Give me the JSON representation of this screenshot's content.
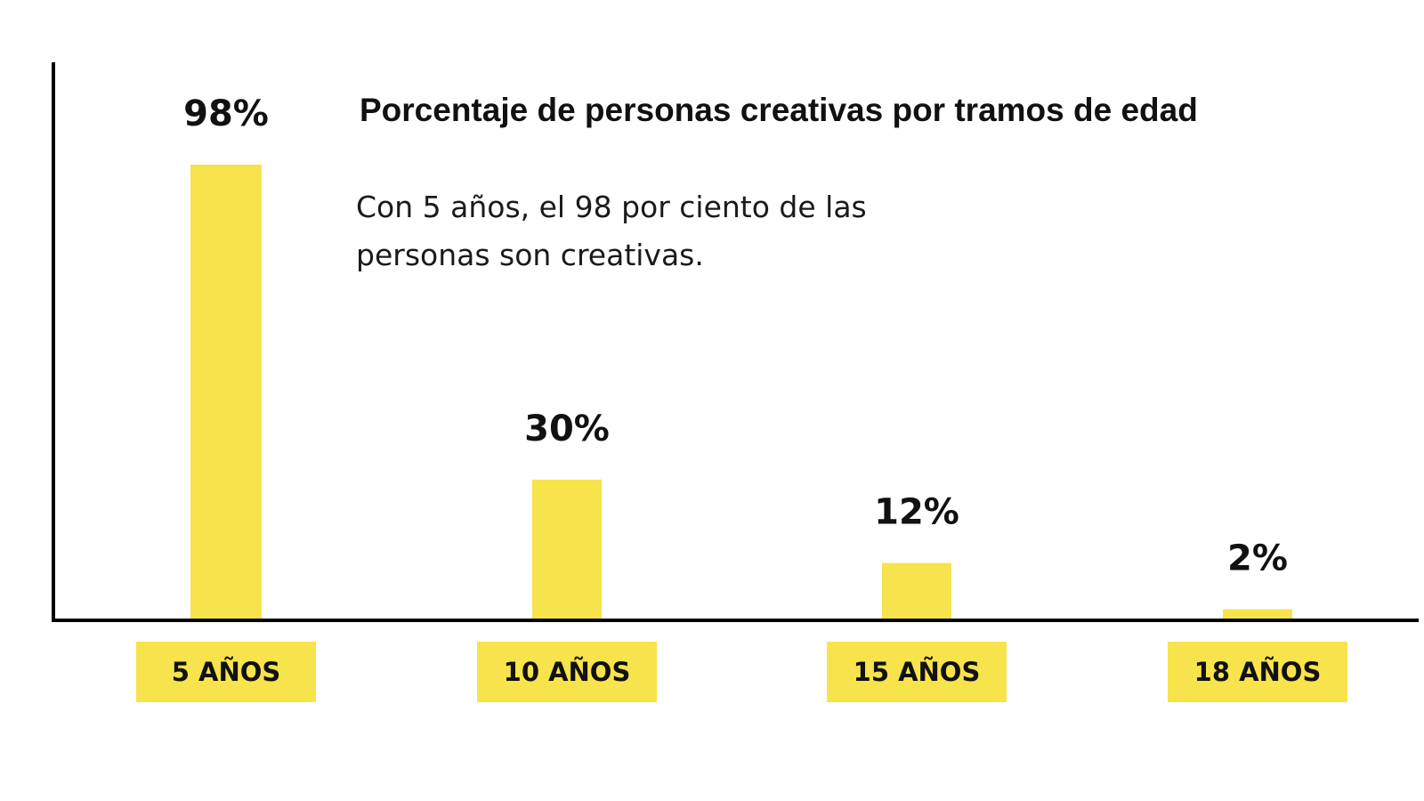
{
  "chart_data": {
    "type": "bar",
    "title": "Porcentaje de personas creativas por tramos de edad",
    "subtitle": "Con 5 años, el 98 por ciento de las personas son creativas.",
    "categories": [
      "5 AÑOS",
      "10 AÑOS",
      "15 AÑOS",
      "18 AÑOS"
    ],
    "values": [
      98,
      30,
      12,
      2
    ],
    "value_labels": [
      "98%",
      "30%",
      "12%",
      "2%"
    ],
    "ylim": [
      0,
      100
    ],
    "grid": false,
    "legend": "none",
    "colors": {
      "bar": "#F7E34B",
      "axis": "#000000",
      "text": "#111111",
      "background": "#FFFFFF"
    }
  }
}
